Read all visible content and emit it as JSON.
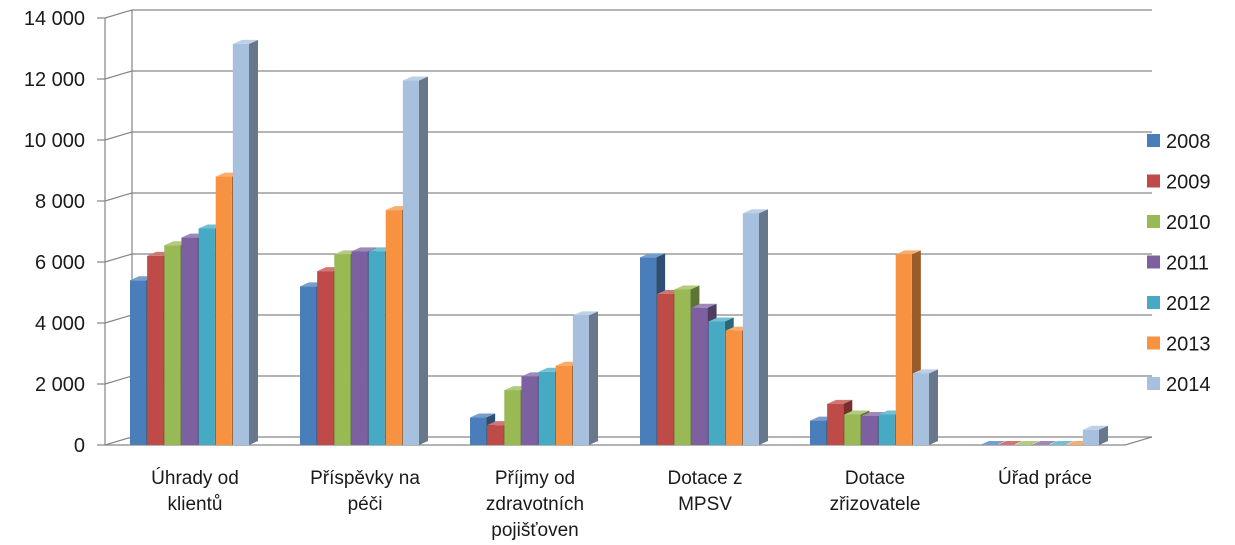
{
  "chart_data": {
    "type": "bar",
    "categories": [
      [
        "Úhrady od",
        "klientů"
      ],
      [
        "Příspěvky na",
        "péči"
      ],
      [
        "Příjmy od",
        "zdravotních",
        "pojišťoven"
      ],
      [
        "Dotace z",
        "MPSV"
      ],
      [
        "Dotace",
        "zřizovatele"
      ],
      [
        "Úřad práce"
      ]
    ],
    "series": [
      {
        "name": "2008",
        "color": "#4a7ebb",
        "values": [
          5400,
          5200,
          900,
          6150,
          800,
          0
        ]
      },
      {
        "name": "2009",
        "color": "#be4b48",
        "values": [
          6200,
          5700,
          650,
          4950,
          1350,
          0
        ]
      },
      {
        "name": "2010",
        "color": "#98b954",
        "values": [
          6550,
          6250,
          1800,
          5100,
          1000,
          0
        ]
      },
      {
        "name": "2011",
        "color": "#7d60a0",
        "values": [
          6800,
          6350,
          2250,
          4500,
          950,
          0
        ]
      },
      {
        "name": "2012",
        "color": "#46aac5",
        "values": [
          7100,
          6350,
          2400,
          4050,
          1000,
          0
        ]
      },
      {
        "name": "2013",
        "color": "#f69240",
        "values": [
          8800,
          7700,
          2600,
          3750,
          6250,
          0
        ]
      },
      {
        "name": "2014",
        "color": "#a7c0de",
        "values": [
          13150,
          11950,
          4250,
          7600,
          2350,
          500
        ]
      }
    ],
    "y_ticks": [
      "0",
      "2 000",
      "4 000",
      "6 000",
      "8 000",
      "10 000",
      "12 000",
      "14 000"
    ],
    "ylim": [
      0,
      14000
    ],
    "grid": true,
    "legend": "right",
    "title": "",
    "xlabel": "",
    "ylabel": ""
  }
}
